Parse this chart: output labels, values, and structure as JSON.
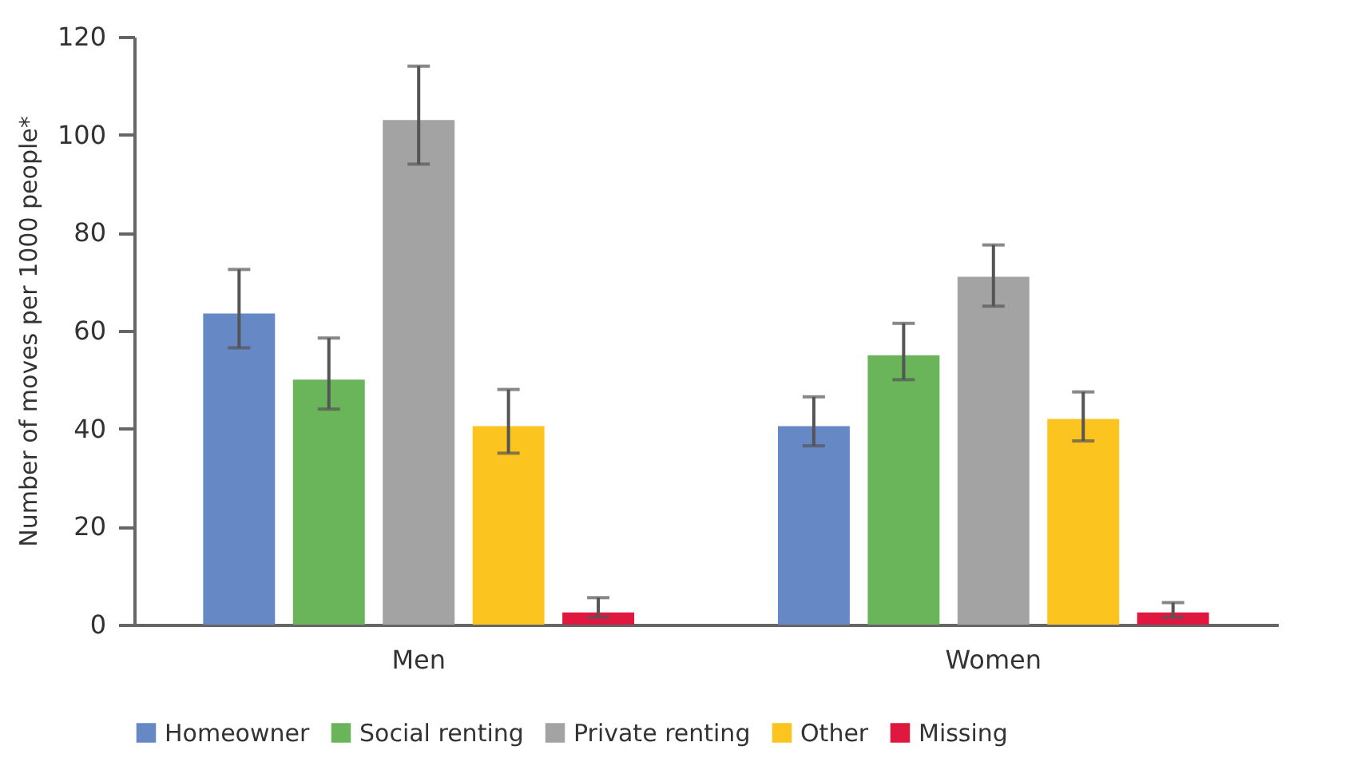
{
  "chart_data": {
    "type": "bar",
    "ylabel": "Number of moves per 1000 people*",
    "categories": [
      "Men",
      "Women"
    ],
    "series": [
      {
        "name": "Homeowner",
        "color": "#6688c4",
        "values": [
          63.5,
          40.5
        ],
        "errors": [
          [
            56.5,
            72.5
          ],
          [
            36.5,
            46.5
          ]
        ]
      },
      {
        "name": "Social renting",
        "color": "#6ab55a",
        "values": [
          50,
          55
        ],
        "errors": [
          [
            44,
            58.5
          ],
          [
            50,
            61.5
          ]
        ]
      },
      {
        "name": "Private renting",
        "color": "#a3a3a3",
        "values": [
          103,
          71
        ],
        "errors": [
          [
            94,
            114
          ],
          [
            65,
            77.5
          ]
        ]
      },
      {
        "name": "Other",
        "color": "#fcc41f",
        "values": [
          40.5,
          42
        ],
        "errors": [
          [
            35,
            48
          ],
          [
            37.5,
            47.5
          ]
        ]
      },
      {
        "name": "Missing",
        "color": "#e0173f",
        "values": [
          2.5,
          2.5
        ],
        "errors": [
          [
            1.5,
            5.5
          ],
          [
            1.5,
            4.5
          ]
        ]
      }
    ],
    "ylim": [
      0,
      120
    ],
    "yticks": [
      0,
      20,
      40,
      60,
      80,
      100,
      120
    ],
    "grid": false,
    "legend": "bottom"
  }
}
